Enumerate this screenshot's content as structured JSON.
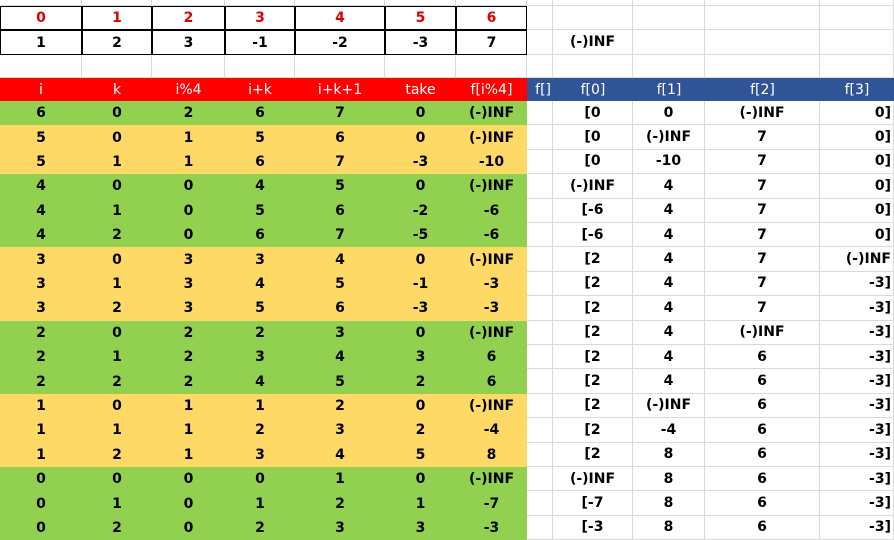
{
  "index_row": [
    "0",
    "1",
    "2",
    "3",
    "4",
    "5",
    "6"
  ],
  "value_row": [
    "1",
    "2",
    "3",
    "-1",
    "-2",
    "-3",
    "7"
  ],
  "neg_inf_label": "(-)INF",
  "left_headers": [
    "i",
    "k",
    "i%4",
    "i+k",
    "i+k+1",
    "take",
    "f[i%4]"
  ],
  "right_headers": [
    "f[]",
    "f[0]",
    "f[1]",
    "f[2]",
    "f[3]"
  ],
  "colors": {
    "header_red": "#ff0000",
    "header_blue": "#305496",
    "green": "#92d050",
    "yellow": "#ffd966",
    "index_text": "#e00000"
  },
  "rows": [
    {
      "group": "green",
      "left": [
        "6",
        "0",
        "2",
        "6",
        "7",
        "0",
        "(-)INF"
      ],
      "right": [
        "[0",
        "0",
        "(-)INF",
        "0]"
      ]
    },
    {
      "group": "yellow",
      "left": [
        "5",
        "0",
        "1",
        "5",
        "6",
        "0",
        "(-)INF"
      ],
      "right": [
        "[0",
        "(-)INF",
        "7",
        "0]"
      ]
    },
    {
      "group": "yellow",
      "left": [
        "5",
        "1",
        "1",
        "6",
        "7",
        "-3",
        "-10"
      ],
      "right": [
        "[0",
        "-10",
        "7",
        "0]"
      ]
    },
    {
      "group": "green",
      "left": [
        "4",
        "0",
        "0",
        "4",
        "5",
        "0",
        "(-)INF"
      ],
      "right": [
        "(-)INF",
        "4",
        "7",
        "0]"
      ]
    },
    {
      "group": "green",
      "left": [
        "4",
        "1",
        "0",
        "5",
        "6",
        "-2",
        "-6"
      ],
      "right": [
        "[-6",
        "4",
        "7",
        "0]"
      ]
    },
    {
      "group": "green",
      "left": [
        "4",
        "2",
        "0",
        "6",
        "7",
        "-5",
        "-6"
      ],
      "right": [
        "[-6",
        "4",
        "7",
        "0]"
      ]
    },
    {
      "group": "yellow",
      "left": [
        "3",
        "0",
        "3",
        "3",
        "4",
        "0",
        "(-)INF"
      ],
      "right": [
        "[2",
        "4",
        "7",
        "(-)INF"
      ]
    },
    {
      "group": "yellow",
      "left": [
        "3",
        "1",
        "3",
        "4",
        "5",
        "-1",
        "-3"
      ],
      "right": [
        "[2",
        "4",
        "7",
        "-3]"
      ]
    },
    {
      "group": "yellow",
      "left": [
        "3",
        "2",
        "3",
        "5",
        "6",
        "-3",
        "-3"
      ],
      "right": [
        "[2",
        "4",
        "7",
        "-3]"
      ]
    },
    {
      "group": "green",
      "left": [
        "2",
        "0",
        "2",
        "2",
        "3",
        "0",
        "(-)INF"
      ],
      "right": [
        "[2",
        "4",
        "(-)INF",
        "-3]"
      ]
    },
    {
      "group": "green",
      "left": [
        "2",
        "1",
        "2",
        "3",
        "4",
        "3",
        "6"
      ],
      "right": [
        "[2",
        "4",
        "6",
        "-3]"
      ]
    },
    {
      "group": "green",
      "left": [
        "2",
        "2",
        "2",
        "4",
        "5",
        "2",
        "6"
      ],
      "right": [
        "[2",
        "4",
        "6",
        "-3]"
      ]
    },
    {
      "group": "yellow",
      "left": [
        "1",
        "0",
        "1",
        "1",
        "2",
        "0",
        "(-)INF"
      ],
      "right": [
        "[2",
        "(-)INF",
        "6",
        "-3]"
      ]
    },
    {
      "group": "yellow",
      "left": [
        "1",
        "1",
        "1",
        "2",
        "3",
        "2",
        "-4"
      ],
      "right": [
        "[2",
        "-4",
        "6",
        "-3]"
      ]
    },
    {
      "group": "yellow",
      "left": [
        "1",
        "2",
        "1",
        "3",
        "4",
        "5",
        "8"
      ],
      "right": [
        "[2",
        "8",
        "6",
        "-3]"
      ]
    },
    {
      "group": "green",
      "left": [
        "0",
        "0",
        "0",
        "0",
        "1",
        "0",
        "(-)INF"
      ],
      "right": [
        "(-)INF",
        "8",
        "6",
        "-3]"
      ]
    },
    {
      "group": "green",
      "left": [
        "0",
        "1",
        "0",
        "1",
        "2",
        "1",
        "-7"
      ],
      "right": [
        "[-7",
        "8",
        "6",
        "-3]"
      ]
    },
    {
      "group": "green",
      "left": [
        "0",
        "2",
        "0",
        "2",
        "3",
        "3",
        "-3"
      ],
      "right": [
        "[-3",
        "8",
        "6",
        "-3]"
      ]
    }
  ]
}
